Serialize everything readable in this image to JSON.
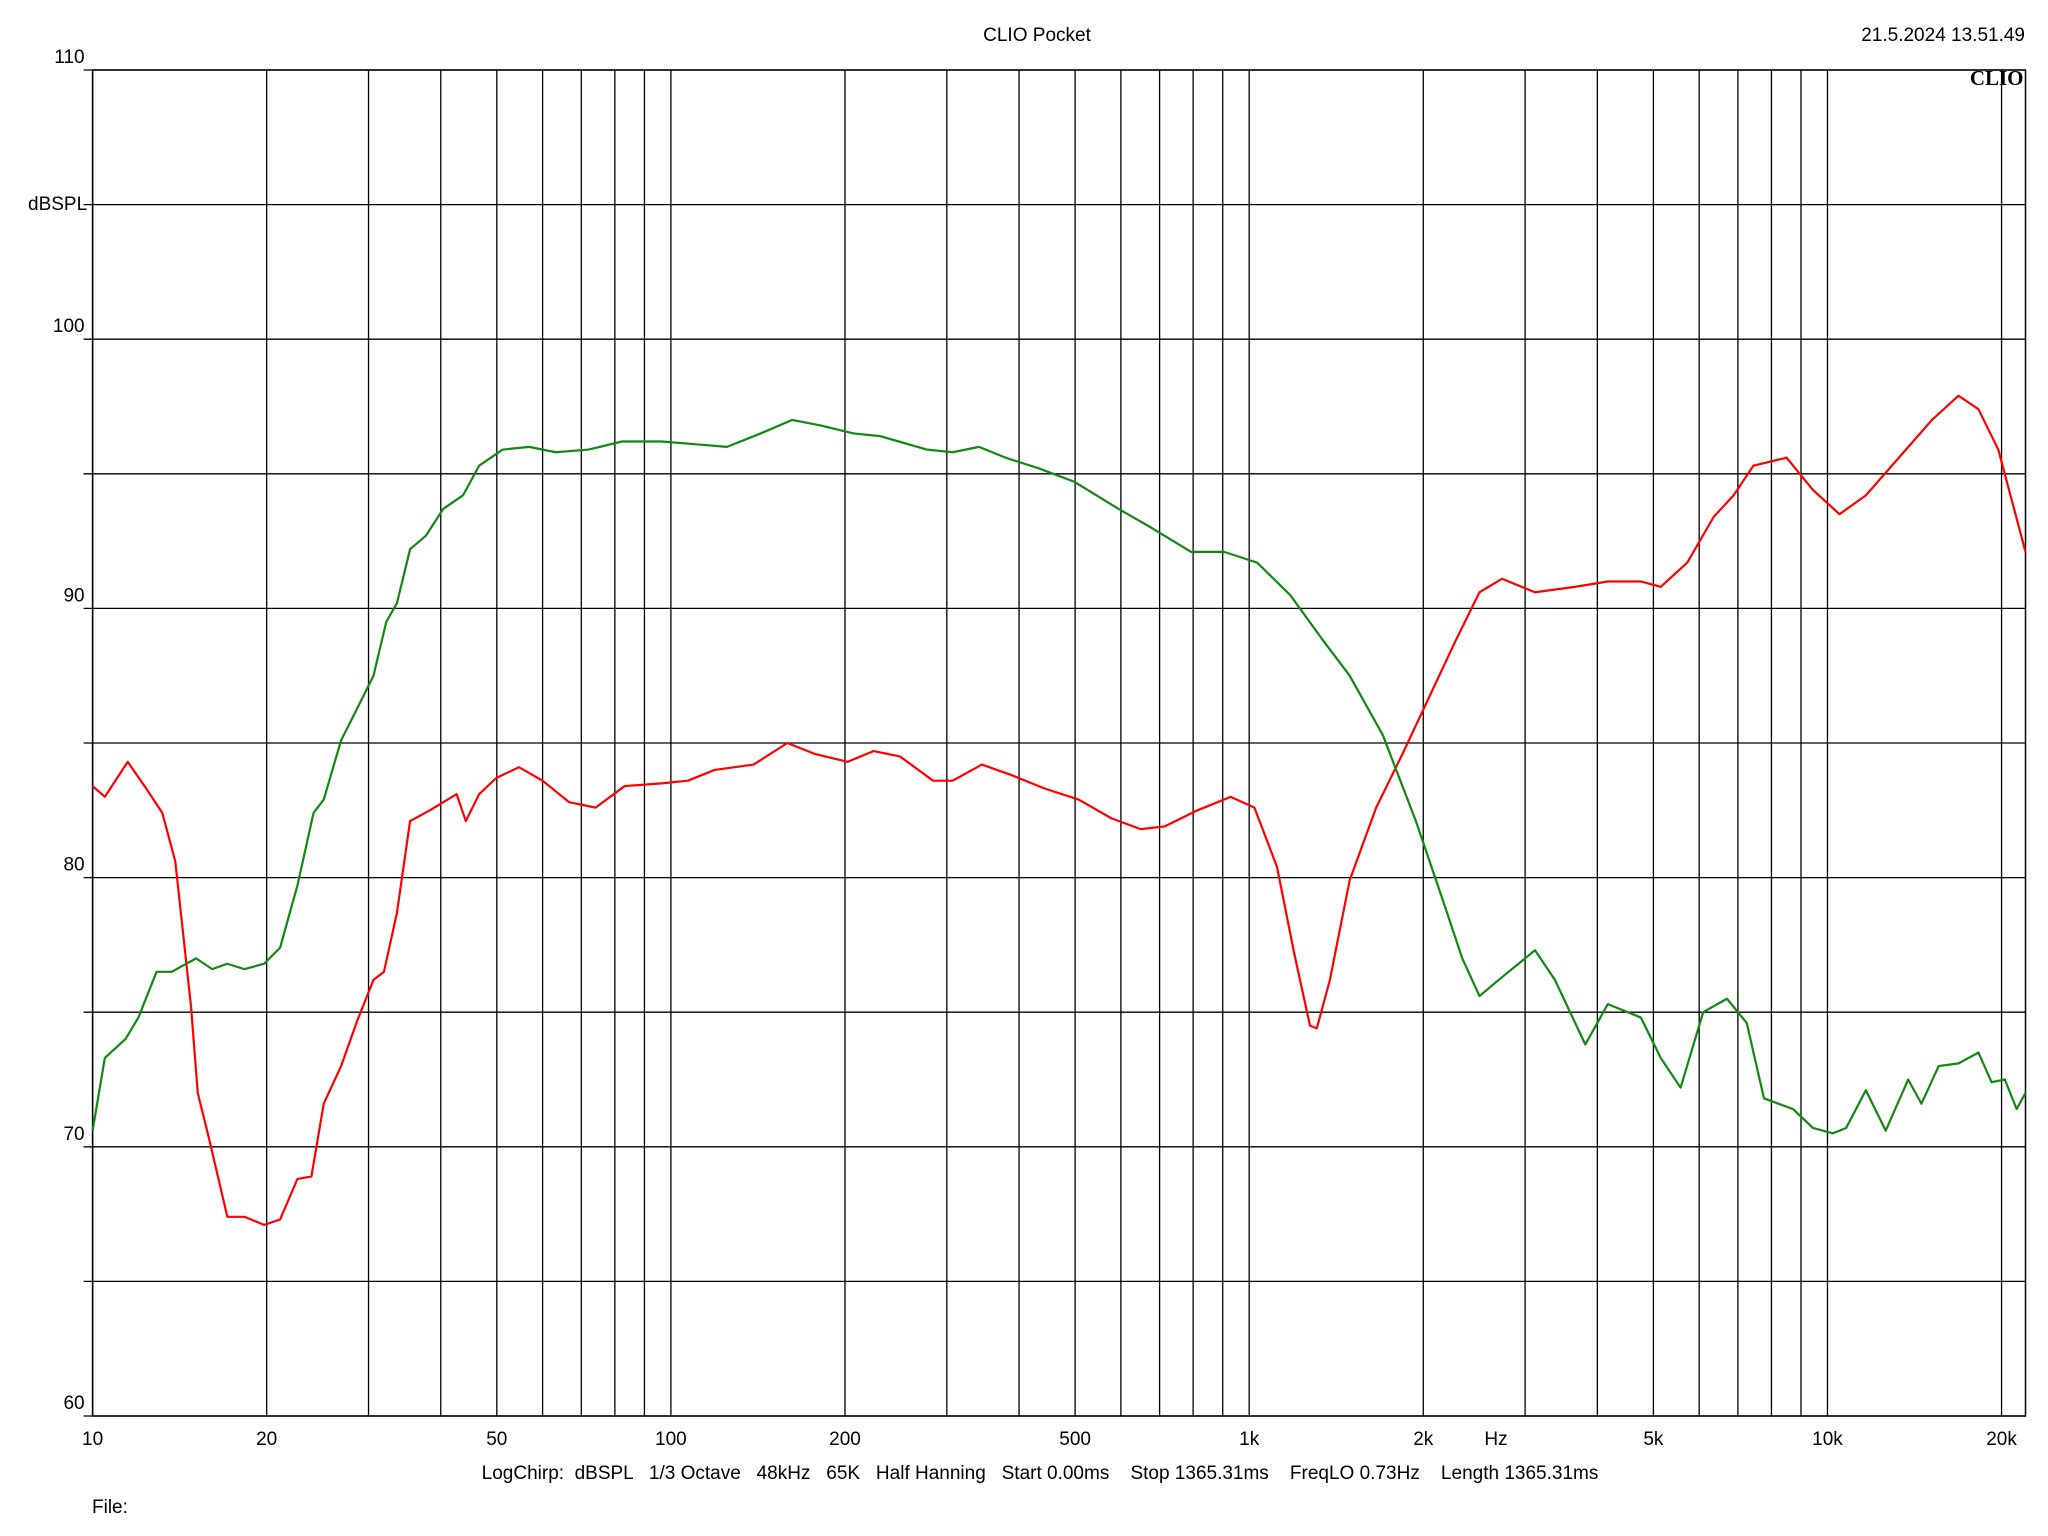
{
  "chart_data": {
    "type": "line",
    "title": "CLIO Pocket",
    "timestamp": "21.5.2024 13.51.49",
    "logo": "CLIO",
    "y_label": "dBSPL",
    "x_unit": "Hz",
    "settings_text": "LogChirp:  dBSPL   1/3 Octave   48kHz   65K   Half Hanning   Start 0.00ms    Stop 1365.31ms    FreqLO 0.73Hz    Length 1365.31ms",
    "file_label": "File:",
    "x_scale": "log",
    "grid": true,
    "xlim": [
      10,
      22000
    ],
    "ylim": [
      60,
      110
    ],
    "xticks": [
      10,
      20,
      50,
      100,
      200,
      500,
      {
        "value": 1000,
        "label": "1k"
      },
      {
        "value": 2000,
        "label": "2k"
      },
      {
        "value": 5000,
        "label": "5k"
      },
      {
        "value": 10000,
        "label": "10k"
      },
      {
        "value": 20000,
        "label": "20k"
      }
    ],
    "xgrid": [
      30,
      40,
      60,
      70,
      80,
      90,
      300,
      400,
      600,
      700,
      800,
      900,
      3000,
      4000,
      6000,
      7000,
      8000,
      9000
    ],
    "yticks": [
      60,
      70,
      80,
      90,
      100,
      110
    ],
    "ygrid": [
      65,
      75,
      85,
      95,
      105
    ],
    "series": [
      {
        "color": "#ff0000",
        "x": [
          10,
          10.5,
          11.5,
          12.3,
          13.2,
          13.9,
          14.8,
          15.2,
          15.9,
          17.1,
          18.3,
          19.8,
          21.1,
          22.6,
          23.9,
          25.1,
          26.9,
          28.7,
          30.6,
          31.9,
          33.6,
          35.4,
          38.3,
          42.6,
          44.2,
          46.6,
          49.9,
          54.6,
          60,
          66.7,
          74.1,
          83.2,
          96.4,
          107,
          119,
          139,
          159,
          177,
          202,
          224,
          249,
          284,
          307,
          345,
          389,
          444,
          507,
          578,
          649,
          714,
          814,
          929,
          1021,
          1117,
          1196,
          1274,
          1309,
          1379,
          1492,
          1658,
          1842,
          2047,
          2275,
          2502,
          2736,
          3121,
          3656,
          4170,
          4757,
          5149,
          5721,
          6357,
          6880,
          7446,
          8496,
          9437,
          10490,
          11650,
          13290,
          15160,
          16850,
          18240,
          19740,
          22000
        ],
        "values": [
          83.4,
          83.0,
          84.3,
          83.4,
          82.4,
          80.6,
          75.2,
          72.0,
          70.3,
          67.4,
          67.4,
          67.1,
          67.3,
          68.8,
          68.9,
          71.6,
          73.0,
          74.7,
          76.2,
          76.5,
          78.7,
          82.1,
          82.5,
          83.1,
          82.1,
          83.1,
          83.7,
          84.1,
          83.6,
          82.8,
          82.6,
          83.4,
          83.5,
          83.6,
          84.0,
          84.2,
          85.0,
          84.6,
          84.3,
          84.7,
          84.5,
          83.6,
          83.6,
          84.2,
          83.8,
          83.3,
          82.9,
          82.2,
          81.8,
          81.9,
          82.5,
          83.0,
          82.6,
          80.4,
          77.2,
          74.5,
          74.4,
          76.2,
          79.9,
          82.6,
          84.6,
          86.7,
          88.8,
          90.6,
          91.1,
          90.6,
          90.8,
          91.0,
          91.0,
          90.8,
          91.7,
          93.4,
          94.2,
          95.3,
          95.6,
          94.4,
          93.5,
          94.2,
          95.6,
          97.0,
          97.9,
          97.4,
          95.9,
          92.1
        ]
      },
      {
        "color": "#118811",
        "x": [
          10,
          10.5,
          11.4,
          12.0,
          12.9,
          13.7,
          15.1,
          16.1,
          17.1,
          18.3,
          19.8,
          21.1,
          22.6,
          24.1,
          25.1,
          26.9,
          28.7,
          30.6,
          32.2,
          33.6,
          35.4,
          37.7,
          40.4,
          43.7,
          46.6,
          51.2,
          56.9,
          63.2,
          72.1,
          82.3,
          96.4,
          110,
          125,
          143,
          162,
          181,
          207,
          230,
          277,
          307,
          341,
          379,
          433,
          499,
          594,
          677,
          793,
          905,
          1032,
          1177,
          1343,
          1492,
          1702,
          1942,
          2159,
          2336,
          2502,
          2736,
          3121,
          3378,
          3813,
          4170,
          4757,
          5149,
          5572,
          6096,
          6701,
          7251,
          7766,
          8719,
          9437,
          10210,
          10770,
          11650,
          12610,
          13790,
          14540,
          15570,
          16850,
          18240,
          19220,
          20260,
          21240,
          22000
        ],
        "values": [
          70.6,
          73.3,
          74.0,
          74.8,
          76.5,
          76.5,
          77.0,
          76.6,
          76.8,
          76.6,
          76.8,
          77.4,
          79.7,
          82.4,
          82.9,
          85.1,
          86.3,
          87.5,
          89.5,
          90.2,
          92.2,
          92.7,
          93.7,
          94.2,
          95.3,
          95.9,
          96.0,
          95.8,
          95.9,
          96.2,
          96.2,
          96.1,
          96.0,
          96.5,
          97.0,
          96.8,
          96.5,
          96.4,
          95.9,
          95.8,
          96.0,
          95.6,
          95.2,
          94.7,
          93.7,
          93.0,
          92.1,
          92.1,
          91.7,
          90.5,
          88.8,
          87.5,
          85.3,
          82.1,
          79.2,
          77.0,
          75.6,
          76.3,
          77.3,
          76.2,
          73.8,
          75.3,
          74.8,
          73.3,
          72.2,
          75.0,
          75.5,
          74.6,
          71.8,
          71.4,
          70.7,
          70.5,
          70.7,
          72.1,
          70.6,
          72.5,
          71.6,
          73.0,
          73.1,
          73.5,
          72.4,
          72.5,
          71.4,
          72.0
        ]
      }
    ]
  }
}
